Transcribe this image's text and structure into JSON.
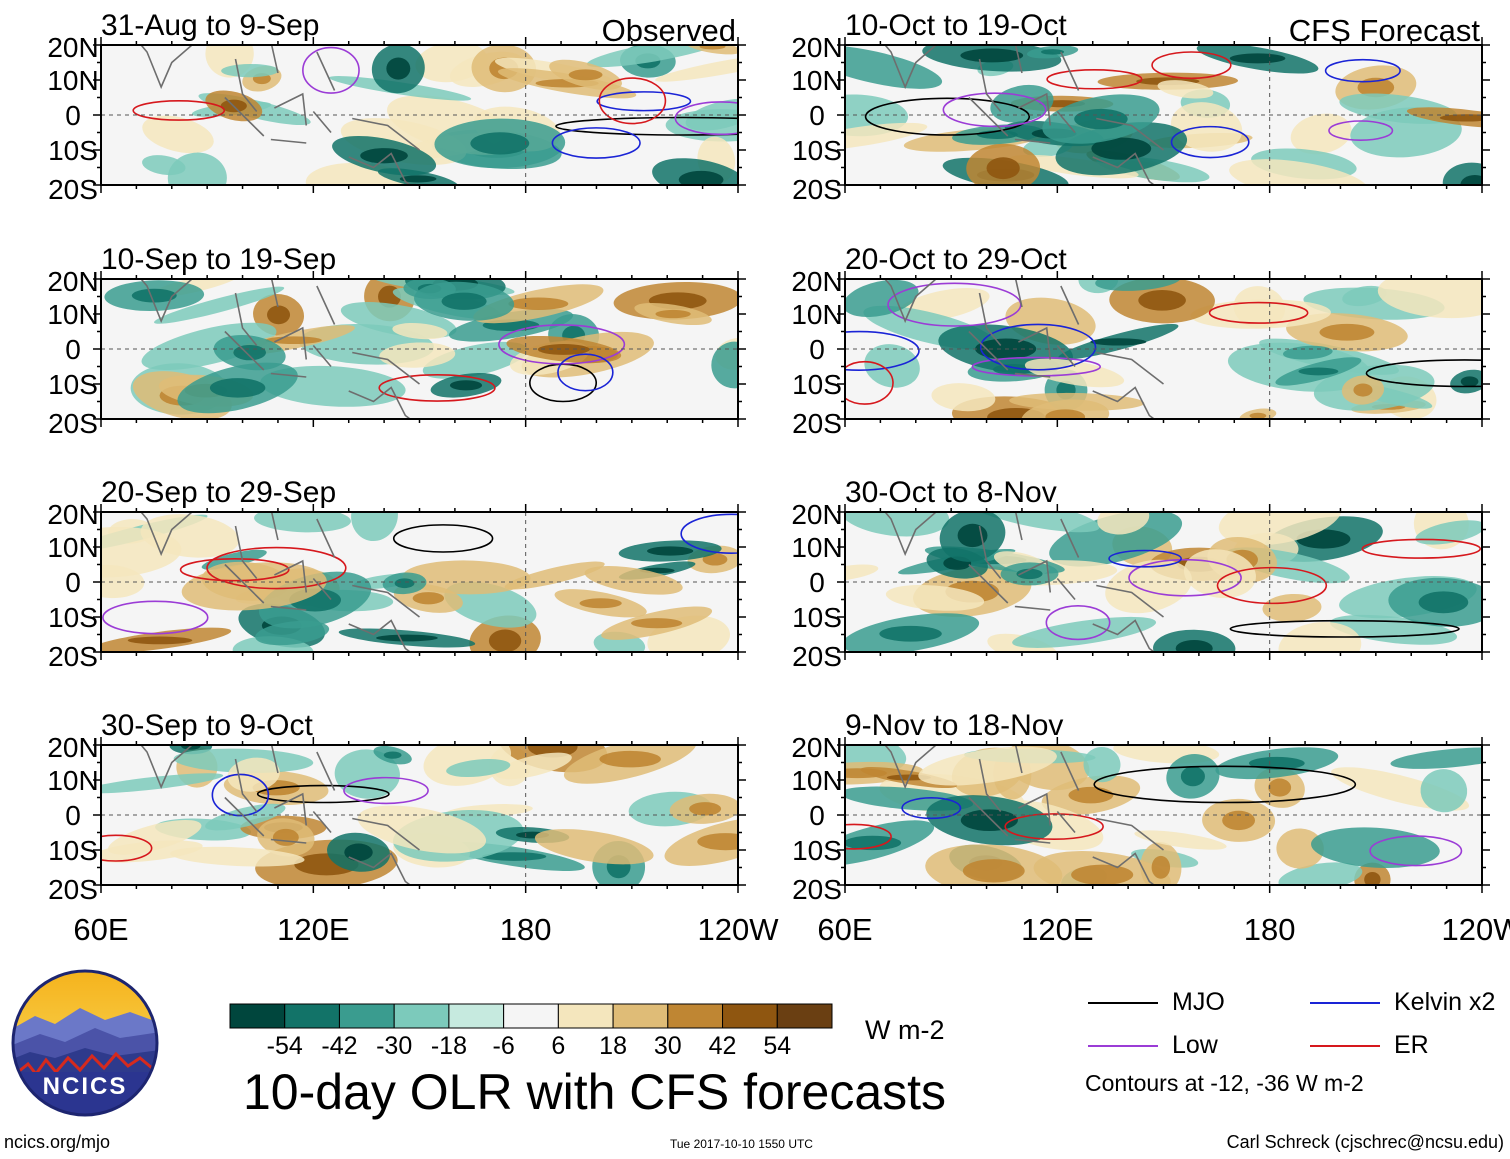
{
  "chart_data": {
    "type": "heatmap",
    "title": "10-day OLR with CFS forecasts",
    "variable": "OLR anomaly",
    "units": "W m-2",
    "panel_headers": {
      "observed": "Observed",
      "forecast": "CFS Forecast"
    },
    "lat_ticks": [
      "20N",
      "10N",
      "0",
      "10S",
      "20S"
    ],
    "lon_ticks": [
      "60E",
      "120E",
      "180",
      "120W"
    ],
    "lat_range": [
      -20,
      20
    ],
    "lon_range": [
      60,
      240
    ],
    "panels": [
      {
        "column": "observed",
        "period": "31-Aug to 9-Sep"
      },
      {
        "column": "observed",
        "period": "10-Sep to 19-Sep"
      },
      {
        "column": "observed",
        "period": "20-Sep to 29-Sep"
      },
      {
        "column": "observed",
        "period": "30-Sep to 9-Oct"
      },
      {
        "column": "forecast",
        "period": "10-Oct to 19-Oct"
      },
      {
        "column": "forecast",
        "period": "20-Oct to 29-Oct"
      },
      {
        "column": "forecast",
        "period": "30-Oct to 8-Nov"
      },
      {
        "column": "forecast",
        "period": "9-Nov to 18-Nov"
      }
    ],
    "colorbar": {
      "levels": [
        -54,
        -42,
        -30,
        -18,
        -6,
        6,
        18,
        30,
        42,
        54
      ],
      "labels": [
        "-54",
        "-42",
        "-30",
        "-18",
        "-6",
        "6",
        "18",
        "30",
        "42",
        "54"
      ],
      "colors": [
        "#00463d",
        "#127368",
        "#3a9c8f",
        "#7ccabb",
        "#c6eadf",
        "#f5f5f5",
        "#f4e6bd",
        "#dfbc77",
        "#bf8633",
        "#8f5610",
        "#6a3f12"
      ]
    },
    "contour_legend": [
      {
        "label": "MJO",
        "color": "#000000"
      },
      {
        "label": "Low",
        "color": "#9b3cd6"
      },
      {
        "label": "Kelvin x2",
        "color": "#1a24d6"
      },
      {
        "label": "ER",
        "color": "#d6181d"
      }
    ],
    "contour_note": "Contours at -12, -36 W m-2"
  },
  "footer": {
    "logo_text": "NCICS",
    "site": "ncics.org/mjo",
    "timestamp": "Tue 2017-10-10 1550 UTC",
    "author": "Carl Schreck (cjschrec@ncsu.edu)"
  }
}
